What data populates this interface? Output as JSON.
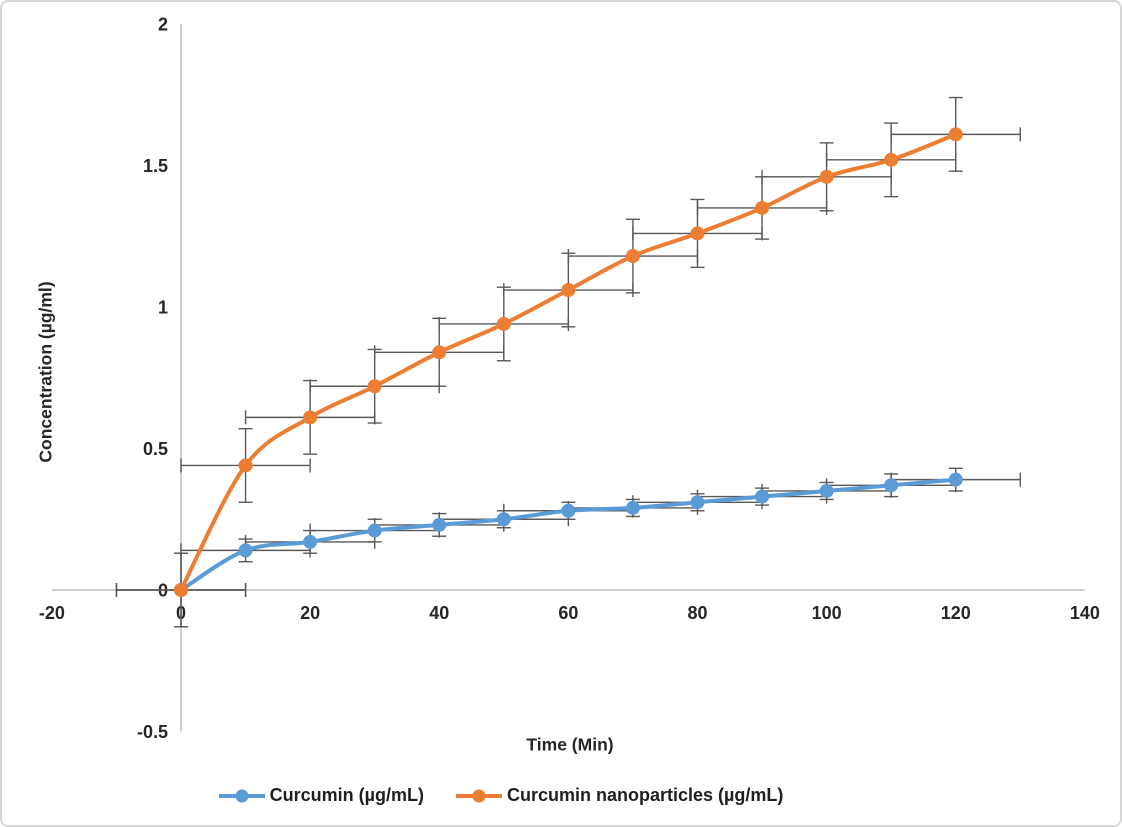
{
  "chart_data": {
    "type": "line",
    "title": "",
    "xlabel": "Time (Min)",
    "ylabel": "Concentration (µg/ml)",
    "x": [
      0,
      10,
      20,
      30,
      40,
      50,
      60,
      70,
      80,
      90,
      100,
      110,
      120
    ],
    "series": [
      {
        "name": "Curcumin (µg/mL)",
        "color": "#5B9BD5",
        "values": [
          0,
          0.14,
          0.17,
          0.21,
          0.23,
          0.25,
          0.28,
          0.29,
          0.31,
          0.33,
          0.35,
          0.37,
          0.39
        ],
        "y_err": [
          0.13,
          0.04,
          0.04,
          0.04,
          0.04,
          0.03,
          0.03,
          0.03,
          0.03,
          0.03,
          0.03,
          0.04,
          0.04
        ],
        "x_err": 10
      },
      {
        "name": "Curcumin nanoparticles (µg/mL)",
        "color": "#ED7D31",
        "values": [
          0,
          0.44,
          0.61,
          0.72,
          0.84,
          0.94,
          1.06,
          1.18,
          1.26,
          1.35,
          1.46,
          1.52,
          1.61
        ],
        "y_err": [
          0.13,
          0.13,
          0.13,
          0.13,
          0.12,
          0.13,
          0.13,
          0.13,
          0.12,
          0.11,
          0.12,
          0.13,
          0.13
        ],
        "x_err": 10
      }
    ],
    "xlim": [
      -20,
      140
    ],
    "ylim": [
      -0.5,
      2
    ],
    "xticks": [
      -20,
      0,
      20,
      40,
      60,
      80,
      100,
      120,
      140
    ],
    "yticks": [
      -0.5,
      0,
      0.5,
      1,
      1.5,
      2
    ],
    "grid": false,
    "legend_position": "bottom",
    "axis_line_color": "#BFBFBF",
    "error_bar_color": "#595959"
  }
}
